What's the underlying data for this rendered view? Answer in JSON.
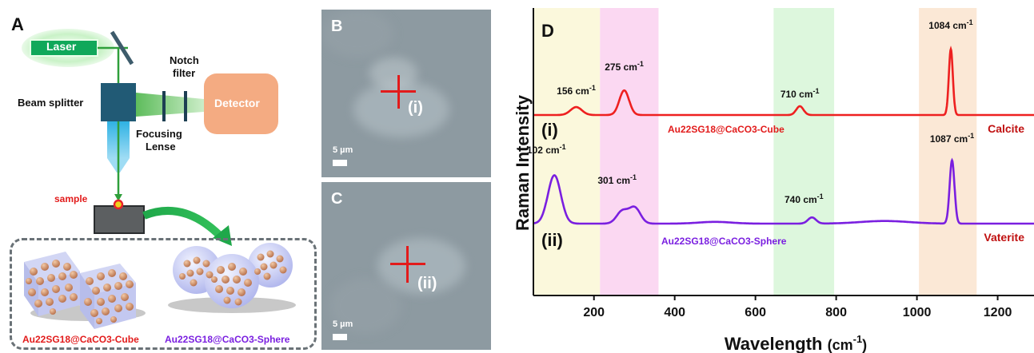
{
  "panel_a": {
    "letter": "A",
    "laser": "Laser",
    "notch_filter_line1": "Notch",
    "notch_filter_line2": "filter",
    "beam_splitter": "Beam splitter",
    "detector": "Detector",
    "focusing_line1": "Focusing",
    "focusing_line2": "Lense",
    "sample": "sample",
    "cube_label": "Au22SG18@CaCO3-Cube",
    "sphere_label": "Au22SG18@CaCO3-Sphere",
    "colors": {
      "laser": "#10a85a",
      "detector": "#f4ab82",
      "splitter": "#215a75",
      "lens": "#2fb2e4",
      "arrow": "#1fa84a"
    }
  },
  "panel_b": {
    "letter": "B",
    "marker": "(i)",
    "scale": "5 µm"
  },
  "panel_c": {
    "letter": "C",
    "marker": "(ii)",
    "scale": "5 µm"
  },
  "panel_d": {
    "letter": "D",
    "ylabel": "Raman Intensity",
    "xlabel": "Wavelength (cm-1)",
    "xlabel_main": "Wavelength",
    "xlabel_unit": "(cm",
    "xlabel_sup": "-1",
    "xlabel_close": ")",
    "trace_i_label": "(i)",
    "trace_ii_label": "(ii)",
    "sample_i": "Au22SG18@CaCO3-Cube",
    "sample_ii": "Au22SG18@CaCO3-Sphere",
    "phase_i": "Calcite",
    "phase_ii": "Vaterite",
    "unit": "cm-1"
  },
  "chart_data": {
    "type": "line",
    "xlabel": "Wavelength (cm-1)",
    "ylabel": "Raman Intensity",
    "xlim": [
      50,
      1290
    ],
    "xticks": [
      200,
      400,
      600,
      800,
      1000,
      1200
    ],
    "highlight_bands": [
      {
        "from": 50,
        "to": 215,
        "color": "#fbf8dc"
      },
      {
        "from": 215,
        "to": 360,
        "color": "#fbd8f2"
      },
      {
        "from": 645,
        "to": 795,
        "color": "#ddf7dd"
      },
      {
        "from": 1005,
        "to": 1148,
        "color": "#fbe8d6"
      }
    ],
    "series": [
      {
        "name": "(i) Au22SG18@CaCO3-Cube",
        "color": "#ee2020",
        "baseline": 0,
        "peaks": [
          {
            "x": 156,
            "height": 0.09,
            "width": 14
          },
          {
            "x": 275,
            "height": 0.28,
            "width": 12
          },
          {
            "x": 710,
            "height": 0.1,
            "width": 9
          },
          {
            "x": 1084,
            "height": 0.75,
            "width": 5
          }
        ],
        "peak_labels": [
          {
            "x": 156,
            "label": "156 cm-1"
          },
          {
            "x": 275,
            "label": "275 cm-1"
          },
          {
            "x": 710,
            "label": "710 cm-1"
          },
          {
            "x": 1084,
            "label": "1084 cm-1"
          }
        ]
      },
      {
        "name": "(ii) Au22SG18@CaCO3-Sphere",
        "color": "#7a1fe0",
        "baseline": 0,
        "peaks": [
          {
            "x": 102,
            "height": 0.55,
            "width": 16
          },
          {
            "x": 270,
            "height": 0.14,
            "width": 14
          },
          {
            "x": 301,
            "height": 0.18,
            "width": 14
          },
          {
            "x": 500,
            "height": 0.02,
            "width": 40
          },
          {
            "x": 740,
            "height": 0.07,
            "width": 10
          },
          {
            "x": 920,
            "height": 0.03,
            "width": 60
          },
          {
            "x": 1087,
            "height": 0.72,
            "width": 6
          }
        ],
        "peak_labels": [
          {
            "x": 102,
            "label": "102 cm-1"
          },
          {
            "x": 301,
            "label": "301 cm-1"
          },
          {
            "x": 740,
            "label": "740 cm-1"
          },
          {
            "x": 1087,
            "label": "1087 cm-1"
          }
        ]
      }
    ]
  }
}
